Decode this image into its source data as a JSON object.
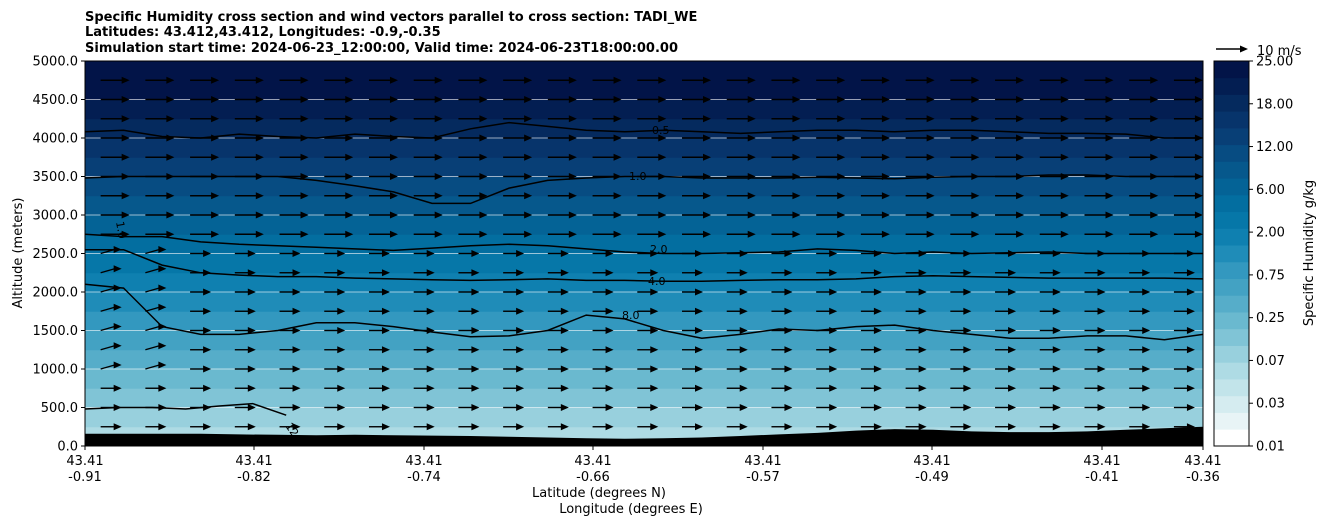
{
  "chart_data": {
    "type": "contourf",
    "title_lines": [
      "Specific Humidity cross section and wind vectors parallel to cross section: TADI_WE",
      "Latitudes: 43.412,43.412, Longitudes: -0.9,-0.35",
      "Simulation start time: 2024-06-23_12:00:00, Valid time: 2024-06-23T18:00:00.00"
    ],
    "xlabel_lines": [
      "Latitude (degrees N)",
      "Longitude (degrees E)"
    ],
    "ylabel": "Altitude (meters)",
    "ylim": [
      0,
      5000
    ],
    "yticks": [
      "0.0",
      "500.0",
      "1000.0",
      "1500.0",
      "2000.0",
      "2500.0",
      "3000.0",
      "3500.0",
      "4000.0",
      "4500.0",
      "5000.0"
    ],
    "xticks": [
      {
        "lat": "43.41",
        "lon": "-0.91"
      },
      {
        "lat": "43.41",
        "lon": "-0.82"
      },
      {
        "lat": "43.41",
        "lon": "-0.74"
      },
      {
        "lat": "43.41",
        "lon": "-0.66"
      },
      {
        "lat": "43.41",
        "lon": "-0.57"
      },
      {
        "lat": "43.41",
        "lon": "-0.49"
      },
      {
        "lat": "43.41",
        "lon": "-0.41"
      },
      {
        "lat": "43.41",
        "lon": "-0.36"
      }
    ],
    "colorbar": {
      "label": "Specific Humidity g/kg",
      "tick_labels": [
        "0.01",
        "0.03",
        "0.07",
        "0.25",
        "0.75",
        "2.00",
        "6.00",
        "12.00",
        "18.00",
        "25.00"
      ]
    },
    "quiver_key": "10 m/s",
    "contour_labels": [
      "0.5",
      "1.0",
      "2.0",
      "4.0",
      "8.0",
      "12.0",
      "1.0",
      "12.0"
    ],
    "contours": [
      {
        "level": 0.5,
        "altitude_m": [
          4080,
          4100,
          4020,
          4000,
          4050,
          4020,
          4000,
          4050,
          4020,
          4000,
          4120,
          4200,
          4150,
          4100,
          4080,
          4100,
          4080,
          4060,
          4080,
          4100,
          4100,
          4080,
          4100,
          4100,
          4080,
          4060,
          4060,
          4050,
          4000,
          4000
        ]
      },
      {
        "level": 1.0,
        "altitude_m": [
          3480,
          3500,
          3500,
          3500,
          3500,
          3500,
          3450,
          3380,
          3300,
          3150,
          3150,
          3350,
          3450,
          3480,
          3500,
          3500,
          3480,
          3480,
          3480,
          3490,
          3480,
          3470,
          3490,
          3500,
          3500,
          3520,
          3520,
          3500,
          3500,
          3500
        ]
      },
      {
        "level": 2.0,
        "altitude_m": [
          2750,
          2720,
          2720,
          2650,
          2620,
          2600,
          2580,
          2560,
          2540,
          2570,
          2600,
          2620,
          2600,
          2560,
          2520,
          2500,
          2500,
          2510,
          2520,
          2560,
          2540,
          2500,
          2520,
          2500,
          2510,
          2520,
          2500,
          2500,
          2500,
          2500
        ]
      },
      {
        "level": 4.0,
        "altitude_m": [
          2550,
          2550,
          2350,
          2250,
          2220,
          2200,
          2200,
          2180,
          2170,
          2160,
          2150,
          2160,
          2170,
          2150,
          2150,
          2140,
          2140,
          2150,
          2160,
          2160,
          2170,
          2200,
          2210,
          2200,
          2190,
          2180,
          2180,
          2180,
          2180,
          2170
        ]
      },
      {
        "level": 8.0,
        "altitude_m": [
          2100,
          2050,
          1550,
          1450,
          1450,
          1500,
          1600,
          1600,
          1550,
          1480,
          1420,
          1430,
          1500,
          1700,
          1650,
          1500,
          1400,
          1450,
          1520,
          1500,
          1550,
          1570,
          1500,
          1450,
          1400,
          1400,
          1430,
          1430,
          1380,
          1450
        ]
      },
      {
        "level": 12.0,
        "altitude_m": [
          480,
          500,
          500,
          480,
          520,
          550,
          400
        ]
      }
    ],
    "terrain_altitude_m": [
      160,
      160,
      160,
      160,
      150,
      145,
      140,
      145,
      140,
      135,
      130,
      120,
      110,
      100,
      95,
      100,
      110,
      130,
      150,
      170,
      200,
      220,
      210,
      190,
      180,
      180,
      190,
      210,
      230,
      250
    ],
    "wind_vectors": "eastward, roughly 10 m/s, on a regular grid of altitude levels every 250 m"
  },
  "colors": {
    "levels": [
      "#ffffff",
      "#e8f4f6",
      "#d5ecf0",
      "#c2e4ea",
      "#aedbe4",
      "#98d0dd",
      "#80c4d6",
      "#6ab9cf",
      "#56adc9",
      "#43a2c3",
      "#3398bf",
      "#1f8cb8",
      "#0f80b0",
      "#0677a8",
      "#036ea0",
      "#046396",
      "#06588c",
      "#074c82",
      "#083f76",
      "#07346b",
      "#052a5e",
      "#031e52",
      "#021448"
    ],
    "terrain": "#000000",
    "grid": "#ffffff",
    "contour": "#000000"
  }
}
